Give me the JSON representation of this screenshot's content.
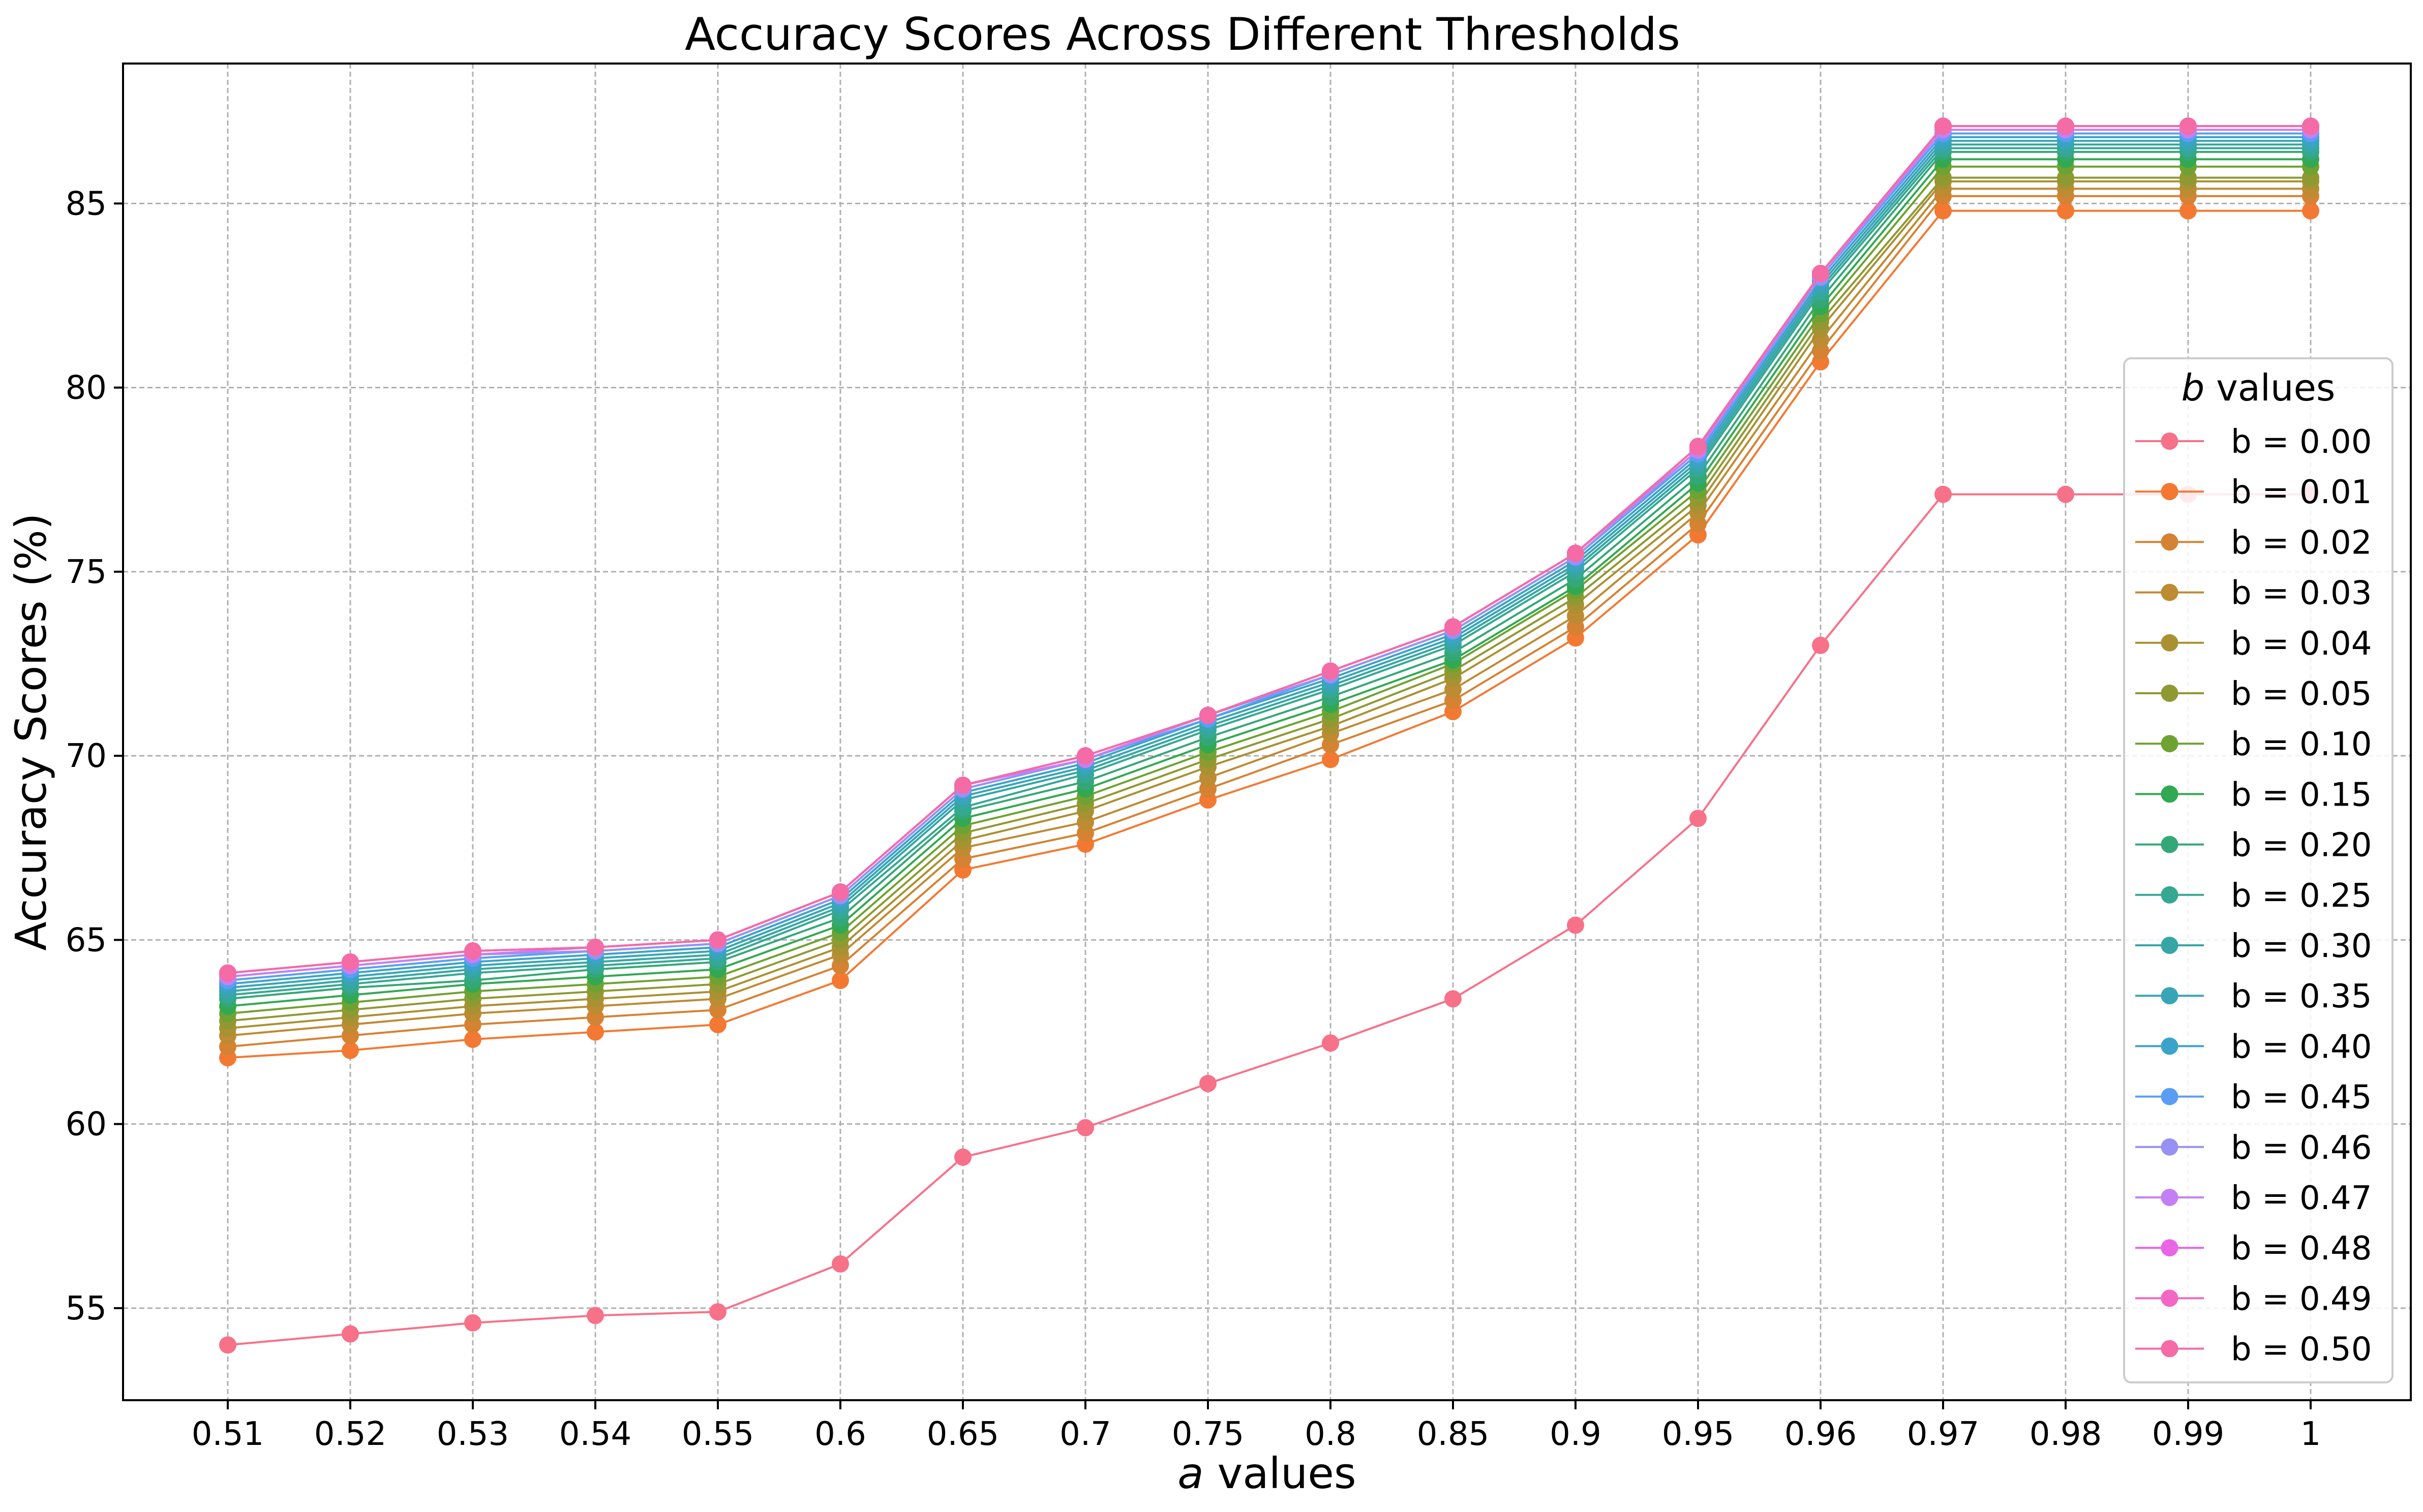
{
  "chart_data": {
    "type": "line",
    "title": "Accuracy Scores Across Different Thresholds",
    "xlabel_italic": "a",
    "xlabel_rest": " values",
    "ylabel": "Accuracy Scores (%)",
    "ylim": [
      52.5,
      88.8
    ],
    "yticks": [
      55,
      60,
      65,
      70,
      75,
      80,
      85
    ],
    "grid": true,
    "categories": [
      "0.51",
      "0.52",
      "0.53",
      "0.54",
      "0.55",
      "0.6",
      "0.65",
      "0.7",
      "0.75",
      "0.8",
      "0.85",
      "0.9",
      "0.95",
      "0.96",
      "0.97",
      "0.98",
      "0.99",
      "1"
    ],
    "legend": {
      "title_italic": "b",
      "title_rest": " values",
      "placement": "center-right"
    },
    "series": [
      {
        "name": "b = 0.00",
        "color": "#f77189",
        "values": [
          54.0,
          54.3,
          54.6,
          54.8,
          54.9,
          56.2,
          59.1,
          59.9,
          61.1,
          62.2,
          63.4,
          65.4,
          68.3,
          73.0,
          77.1,
          77.1,
          77.1,
          77.1
        ]
      },
      {
        "name": "b = 0.01",
        "color": "#f37932",
        "values": [
          61.8,
          62.0,
          62.3,
          62.5,
          62.7,
          63.9,
          66.9,
          67.6,
          68.8,
          69.9,
          71.2,
          73.2,
          76.0,
          80.7,
          84.8,
          84.8,
          84.8,
          84.8
        ]
      },
      {
        "name": "b = 0.02",
        "color": "#d58232",
        "values": [
          62.1,
          62.4,
          62.7,
          62.9,
          63.1,
          64.3,
          67.2,
          67.9,
          69.1,
          70.3,
          71.5,
          73.5,
          76.3,
          81.0,
          85.2,
          85.2,
          85.2,
          85.2
        ]
      },
      {
        "name": "b = 0.03",
        "color": "#bd8b32",
        "values": [
          62.4,
          62.7,
          63.0,
          63.2,
          63.4,
          64.6,
          67.5,
          68.2,
          69.4,
          70.6,
          71.8,
          73.8,
          76.6,
          81.3,
          85.4,
          85.4,
          85.4,
          85.4
        ]
      },
      {
        "name": "b = 0.04",
        "color": "#a99132",
        "values": [
          62.6,
          62.9,
          63.2,
          63.4,
          63.6,
          64.8,
          67.7,
          68.5,
          69.7,
          70.8,
          72.1,
          74.1,
          76.8,
          81.6,
          85.6,
          85.6,
          85.6,
          85.6
        ]
      },
      {
        "name": "b = 0.05",
        "color": "#8f9932",
        "values": [
          62.8,
          63.1,
          63.4,
          63.6,
          63.8,
          65.0,
          67.9,
          68.7,
          69.9,
          71.0,
          72.3,
          74.3,
          77.0,
          81.8,
          85.7,
          85.7,
          85.7,
          85.7
        ]
      },
      {
        "name": "b = 0.10",
        "color": "#6ea232",
        "values": [
          63.0,
          63.3,
          63.6,
          63.8,
          64.0,
          65.2,
          68.1,
          68.9,
          70.1,
          71.2,
          72.5,
          74.5,
          77.2,
          82.0,
          86.0,
          86.0,
          86.0,
          86.0
        ]
      },
      {
        "name": "b = 0.15",
        "color": "#32a852",
        "values": [
          63.2,
          63.5,
          63.8,
          64.0,
          64.2,
          65.4,
          68.3,
          69.1,
          70.3,
          71.4,
          72.6,
          74.6,
          77.4,
          82.2,
          86.2,
          86.2,
          86.2,
          86.2
        ]
      },
      {
        "name": "b = 0.20",
        "color": "#34a779",
        "values": [
          63.4,
          63.7,
          63.9,
          64.2,
          64.4,
          65.6,
          68.5,
          69.3,
          70.5,
          71.6,
          72.8,
          74.8,
          77.6,
          82.4,
          86.4,
          86.4,
          86.4,
          86.4
        ]
      },
      {
        "name": "b = 0.25",
        "color": "#35a892",
        "values": [
          63.5,
          63.8,
          64.1,
          64.3,
          64.5,
          65.8,
          68.6,
          69.5,
          70.7,
          71.8,
          73.0,
          75.0,
          77.8,
          82.6,
          86.5,
          86.5,
          86.5,
          86.5
        ]
      },
      {
        "name": "b = 0.30",
        "color": "#36a6a4",
        "values": [
          63.6,
          63.9,
          64.2,
          64.4,
          64.6,
          65.9,
          68.8,
          69.6,
          70.8,
          71.9,
          73.1,
          75.1,
          77.9,
          82.7,
          86.6,
          86.6,
          86.6,
          86.6
        ]
      },
      {
        "name": "b = 0.35",
        "color": "#38a5b6",
        "values": [
          63.7,
          64.0,
          64.3,
          64.5,
          64.7,
          66.0,
          68.9,
          69.7,
          70.9,
          72.0,
          73.2,
          75.2,
          78.0,
          82.8,
          86.7,
          86.7,
          86.7,
          86.7
        ]
      },
      {
        "name": "b = 0.40",
        "color": "#3ba3ca",
        "values": [
          63.8,
          64.1,
          64.4,
          64.6,
          64.8,
          66.1,
          69.0,
          69.8,
          71.0,
          72.1,
          73.3,
          75.3,
          78.1,
          82.9,
          86.8,
          86.8,
          86.8,
          86.8
        ]
      },
      {
        "name": "b = 0.45",
        "color": "#5a9ef4",
        "values": [
          63.9,
          64.2,
          64.5,
          64.7,
          64.9,
          66.2,
          69.1,
          69.9,
          71.0,
          72.2,
          73.4,
          75.4,
          78.2,
          83.0,
          86.9,
          86.9,
          86.9,
          86.9
        ]
      },
      {
        "name": "b = 0.46",
        "color": "#9891f4",
        "values": [
          64.0,
          64.3,
          64.6,
          64.7,
          64.9,
          66.2,
          69.1,
          69.9,
          71.1,
          72.2,
          73.4,
          75.4,
          78.3,
          83.0,
          87.0,
          87.0,
          87.0,
          87.0
        ]
      },
      {
        "name": "b = 0.47",
        "color": "#c57ff4",
        "values": [
          64.0,
          64.3,
          64.6,
          64.8,
          65.0,
          66.3,
          69.2,
          69.9,
          71.1,
          72.3,
          73.5,
          75.5,
          78.3,
          83.1,
          87.0,
          87.0,
          87.0,
          87.0
        ]
      },
      {
        "name": "b = 0.48",
        "color": "#e965e6",
        "values": [
          64.1,
          64.4,
          64.7,
          64.8,
          65.0,
          66.3,
          69.2,
          70.0,
          71.1,
          72.3,
          73.5,
          75.5,
          78.4,
          83.1,
          87.1,
          87.1,
          87.1,
          87.1
        ]
      },
      {
        "name": "b = 0.49",
        "color": "#f267c4",
        "values": [
          64.1,
          64.4,
          64.7,
          64.8,
          65.0,
          66.3,
          69.2,
          70.0,
          71.1,
          72.3,
          73.5,
          75.5,
          78.4,
          83.1,
          87.1,
          87.1,
          87.1,
          87.1
        ]
      },
      {
        "name": "b = 0.50",
        "color": "#f46ba6",
        "values": [
          64.1,
          64.4,
          64.7,
          64.8,
          65.0,
          66.3,
          69.2,
          70.0,
          71.1,
          72.3,
          73.5,
          75.5,
          78.4,
          83.1,
          87.1,
          87.1,
          87.1,
          87.1
        ]
      }
    ]
  }
}
